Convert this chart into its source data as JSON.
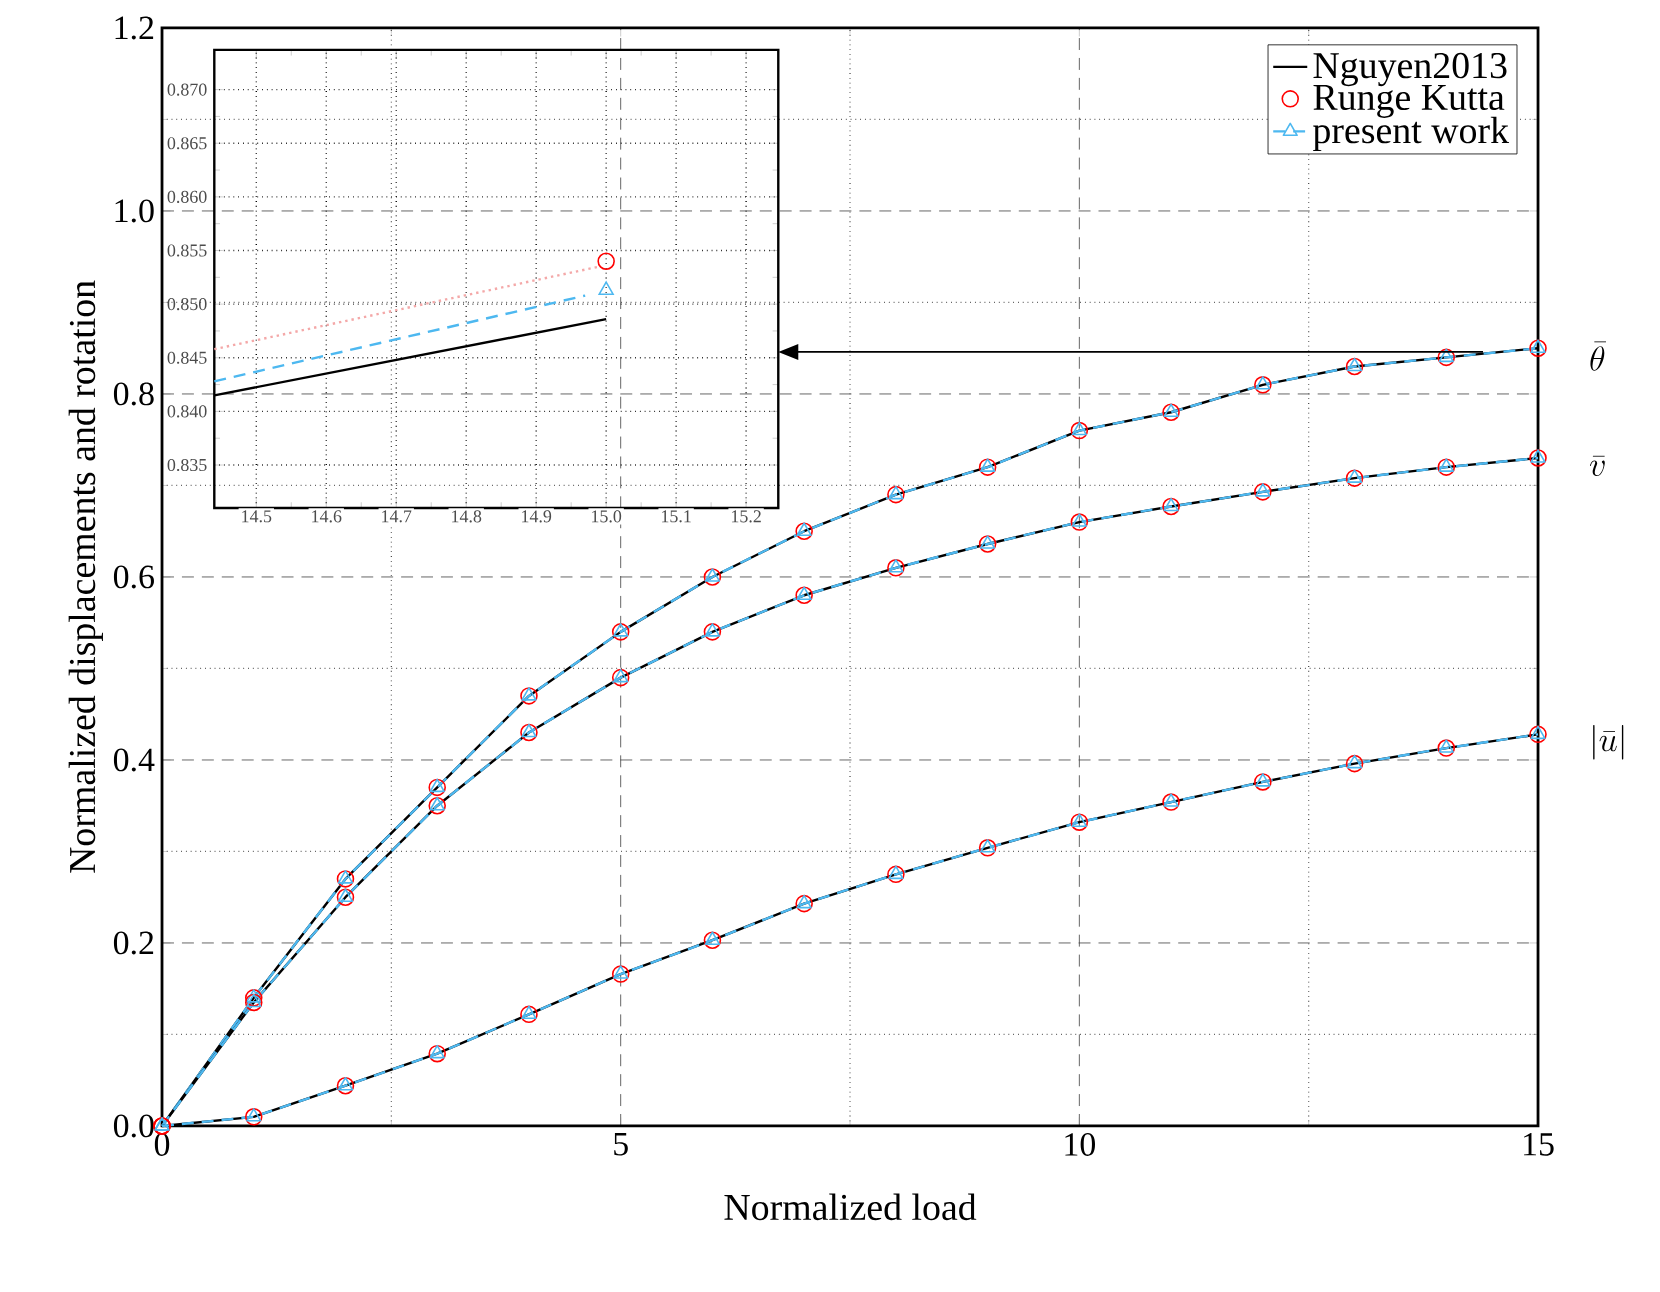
{
  "chart_data": [
    {
      "type": "line",
      "xlabel": "Normalized load",
      "ylabel": "Normalized displacements and rotation",
      "x": [
        0,
        1,
        2,
        3,
        4,
        5,
        6,
        7,
        8,
        9,
        10,
        11,
        12,
        13,
        14,
        15
      ],
      "series": [
        {
          "name": "Nguyen2013",
          "color": "#000000",
          "marker": "none",
          "line_style": "solid",
          "values": [
            0,
            0.14,
            0.27,
            0.37,
            0.47,
            0.54,
            0.6,
            0.65,
            0.69,
            0.72,
            0.76,
            0.78,
            0.81,
            0.83,
            0.84,
            0.85
          ]
        },
        {
          "name": "Runge Kutta",
          "type": "scatter",
          "color": "#ff0000",
          "marker": "circle",
          "values": [
            0,
            0.14,
            0.27,
            0.37,
            0.47,
            0.54,
            0.6,
            0.65,
            0.69,
            0.72,
            0.76,
            0.78,
            0.81,
            0.83,
            0.84,
            0.85
          ]
        },
        {
          "name": "present work",
          "color": "#4db8f0",
          "marker": "triangle",
          "line_style": "dashed",
          "values": [
            0,
            0.14,
            0.27,
            0.37,
            0.47,
            0.54,
            0.6,
            0.65,
            0.69,
            0.72,
            0.76,
            0.78,
            0.81,
            0.83,
            0.84,
            0.85
          ]
        },
        {
          "color": "#000000",
          "marker": "none",
          "line_style": "solid",
          "values": [
            0,
            0.135,
            0.25,
            0.35,
            0.43,
            0.49,
            0.54,
            0.58,
            0.61,
            0.636,
            0.66,
            0.677,
            0.693,
            0.708,
            0.72,
            0.73
          ]
        },
        {
          "type": "scatter",
          "color": "#ff0000",
          "marker": "circle",
          "values": [
            0,
            0.135,
            0.25,
            0.35,
            0.43,
            0.49,
            0.54,
            0.58,
            0.61,
            0.636,
            0.66,
            0.677,
            0.693,
            0.708,
            0.72,
            0.73
          ]
        },
        {
          "color": "#4db8f0",
          "marker": "triangle",
          "line_style": "dashed",
          "values": [
            0,
            0.135,
            0.25,
            0.35,
            0.43,
            0.49,
            0.54,
            0.58,
            0.61,
            0.636,
            0.66,
            0.677,
            0.693,
            0.708,
            0.72,
            0.73
          ]
        },
        {
          "color": "#000000",
          "marker": "none",
          "line_style": "solid",
          "values": [
            0,
            0.01,
            0.044,
            0.079,
            0.122,
            0.166,
            0.203,
            0.243,
            0.275,
            0.304,
            0.332,
            0.354,
            0.376,
            0.396,
            0.413,
            0.428
          ]
        },
        {
          "type": "scatter",
          "color": "#ff0000",
          "marker": "circle",
          "values": [
            0,
            0.01,
            0.044,
            0.079,
            0.122,
            0.166,
            0.203,
            0.243,
            0.275,
            0.304,
            0.332,
            0.354,
            0.376,
            0.396,
            0.413,
            0.428
          ]
        },
        {
          "color": "#4db8f0",
          "marker": "triangle",
          "line_style": "dashed",
          "values": [
            0,
            0.01,
            0.044,
            0.079,
            0.122,
            0.166,
            0.203,
            0.243,
            0.275,
            0.304,
            0.332,
            0.354,
            0.376,
            0.396,
            0.413,
            0.428
          ]
        }
      ],
      "xlim": [
        0,
        15
      ],
      "xticks": [
        0,
        5,
        10,
        15
      ],
      "ylim": [
        0,
        1.2
      ],
      "yticks": [
        {
          "value": 0,
          "label": "0.0"
        },
        0.2,
        0.4,
        0.6,
        0.8,
        {
          "value": 1.0,
          "label": "1.0"
        },
        1.2
      ],
      "grid": true,
      "legend": "top right",
      "annotations": [
        "\\bar{\\theta}",
        "\\bar{v}",
        "|\\bar{u}|"
      ]
    },
    {
      "type": "line",
      "series": [
        {
          "color": "#000000",
          "marker": "none",
          "line_style": "solid",
          "x": [
            14.44,
            15.0
          ],
          "values": [
            0.8415,
            0.8486
          ]
        },
        {
          "color": "#f4a8a8",
          "marker": "none",
          "line_style": "dotted",
          "x": [
            14.44,
            14.99
          ],
          "values": [
            0.8458,
            0.8535
          ]
        },
        {
          "type": "scatter",
          "color": "#ff0000",
          "marker": "circle",
          "x": [
            15.0
          ],
          "values": [
            0.854
          ]
        },
        {
          "color": "#4db8f0",
          "marker": "none",
          "line_style": "dashed",
          "x": [
            14.44,
            14.97
          ],
          "values": [
            0.8428,
            0.8508
          ]
        },
        {
          "type": "scatter",
          "color": "#4db8f0",
          "marker": "triangle",
          "x": [
            15.0
          ],
          "values": [
            0.8513
          ]
        }
      ],
      "xlim": [
        14.44,
        15.246
      ],
      "xticks": [
        14.5,
        14.6,
        14.7,
        14.8,
        14.9,
        {
          "value": 15.0,
          "label": "15.0"
        },
        15.1,
        15.2
      ],
      "ylim": [
        0.831,
        0.8737
      ],
      "yticks": [
        {
          "value": 0.835,
          "label": "0.835"
        },
        {
          "value": 0.84,
          "label": "0.840"
        },
        {
          "value": 0.845,
          "label": "0.845"
        },
        {
          "value": 0.85,
          "label": "0.850"
        },
        {
          "value": 0.855,
          "label": "0.855"
        },
        {
          "value": 0.86,
          "label": "0.860"
        },
        {
          "value": 0.865,
          "label": "0.865"
        },
        {
          "value": 0.87,
          "label": "0.870"
        }
      ],
      "grid": true
    }
  ]
}
